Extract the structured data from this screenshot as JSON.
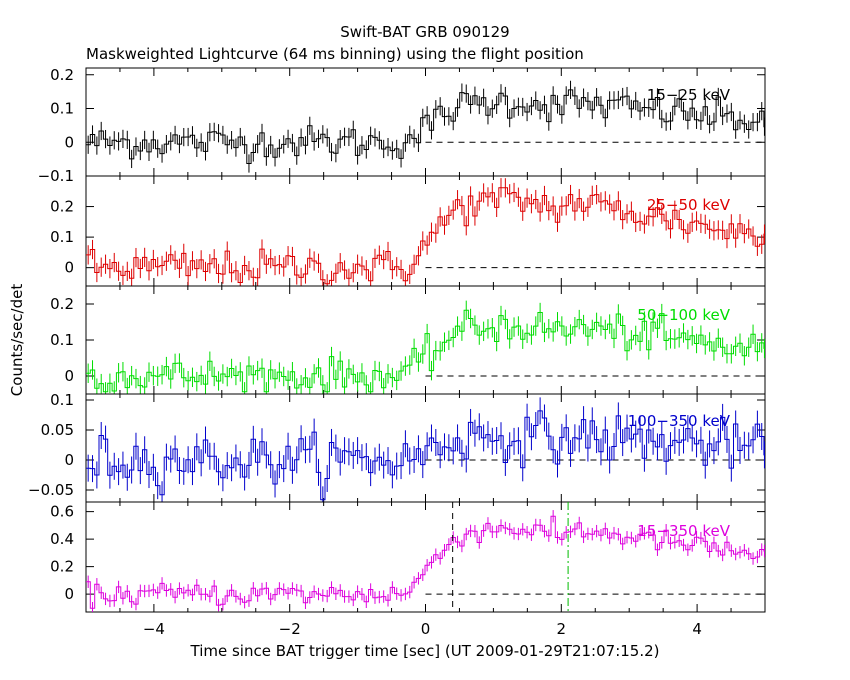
{
  "title": "Swift-BAT GRB 090129",
  "subtitle": "Maskweighted Lightcurve (64 ms binning) using the flight position",
  "xlabel": "Time since BAT trigger time [sec] (UT 2009-01-29T21:07:15.2)",
  "ylabel": "Counts/sec/det",
  "colors": {
    "axes": "#000000",
    "panel1": "#000000",
    "panel2": "#dd0000",
    "panel3": "#00dd00",
    "panel4": "#0000cc",
    "panel5": "#dd00dd",
    "t90_marker": "#00bb00"
  },
  "chart_data": {
    "type": "line",
    "xlim": [
      -5,
      5
    ],
    "bin_width": 0.064,
    "x_ticks": [
      -4,
      -2,
      0,
      2,
      4
    ],
    "x_tick_labels": [
      "−4",
      "−2",
      "0",
      "2",
      "4"
    ],
    "markers": {
      "t_start": 0.4,
      "t_end": 2.1
    },
    "panels": [
      {
        "name": "15−25 keV",
        "ylim": [
          -0.1,
          0.22
        ],
        "yticks": [
          -0.1,
          0,
          0.1,
          0.2
        ],
        "ytick_labels": [
          "−0.1",
          "0",
          "0.1",
          "0.2"
        ],
        "rise": 0.0,
        "peak": 0.12,
        "decay": 0.06,
        "noise": 0.03
      },
      {
        "name": "25−50 keV",
        "ylim": [
          -0.06,
          0.3
        ],
        "yticks": [
          0,
          0.1,
          0.2
        ],
        "ytick_labels": [
          "0",
          "0.1",
          "0.2"
        ],
        "rise": 0.0,
        "peak": 0.22,
        "decay": 0.1,
        "noise": 0.035
      },
      {
        "name": "50−100 keV",
        "ylim": [
          -0.05,
          0.25
        ],
        "yticks": [
          0,
          0.1,
          0.2
        ],
        "ytick_labels": [
          "0",
          "0.1",
          "0.2"
        ],
        "rise": 0.0,
        "peak": 0.14,
        "decay": 0.07,
        "noise": 0.03
      },
      {
        "name": "100−350 keV",
        "ylim": [
          -0.07,
          0.11
        ],
        "yticks": [
          -0.05,
          0,
          0.05,
          0.1
        ],
        "ytick_labels": [
          "−0.05",
          "0",
          "0.05",
          "0.1"
        ],
        "rise": 0.0,
        "peak": 0.04,
        "decay": 0.02,
        "noise": 0.025
      },
      {
        "name": "15−350 keV",
        "ylim": [
          -0.13,
          0.67
        ],
        "yticks": [
          0,
          0.2,
          0.4,
          0.6
        ],
        "ytick_labels": [
          "0",
          "0.2",
          "0.4",
          "0.6"
        ],
        "rise": 0.0,
        "peak": 0.48,
        "decay": 0.28,
        "noise": 0.05
      }
    ]
  }
}
